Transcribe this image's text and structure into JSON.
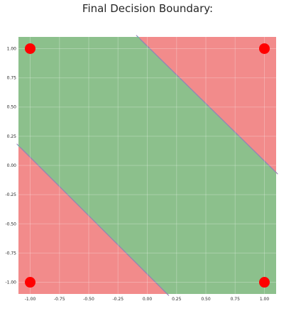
{
  "chart_data": {
    "type": "scatter",
    "title": "Final Decision Boundary:",
    "xlabel": "",
    "ylabel": "",
    "xlim": [
      -1.1,
      1.1
    ],
    "ylim": [
      -1.1,
      1.1
    ],
    "grid": true,
    "x_ticks": [
      -1.0,
      -0.75,
      -0.5,
      -0.25,
      0.0,
      0.25,
      0.5,
      0.75,
      1.0
    ],
    "y_ticks": [
      -1.0,
      -0.75,
      -0.5,
      -0.25,
      0.0,
      0.25,
      0.5,
      0.75,
      1.0
    ],
    "x_tick_labels": [
      "-1.00",
      "-0.75",
      "-0.50",
      "-0.25",
      "0.00",
      "0.25",
      "0.50",
      "0.75",
      "1.00"
    ],
    "y_tick_labels": [
      "-1.00",
      "-0.75",
      "-0.50",
      "-0.25",
      "0.00",
      "0.25",
      "0.50",
      "0.75",
      "1.00"
    ],
    "points": [
      {
        "x": -1.0,
        "y": 1.0
      },
      {
        "x": 1.0,
        "y": 1.0
      },
      {
        "x": -1.0,
        "y": -1.0
      },
      {
        "x": 1.0,
        "y": -1.0
      }
    ],
    "boundaries": [
      {
        "x1": -1.1,
        "y1": 0.17,
        "x2": 0.17,
        "y2": -1.1
      },
      {
        "x1": -0.08,
        "y1": 1.1,
        "x2": 1.1,
        "y2": -0.06
      }
    ],
    "colors": {
      "green_region": "#8cc08c",
      "red_region": "#f28b8b",
      "point": "#ff0000",
      "band": [
        "#9b7fb8",
        "#6aa6c8",
        "#7bbf7b"
      ]
    }
  }
}
